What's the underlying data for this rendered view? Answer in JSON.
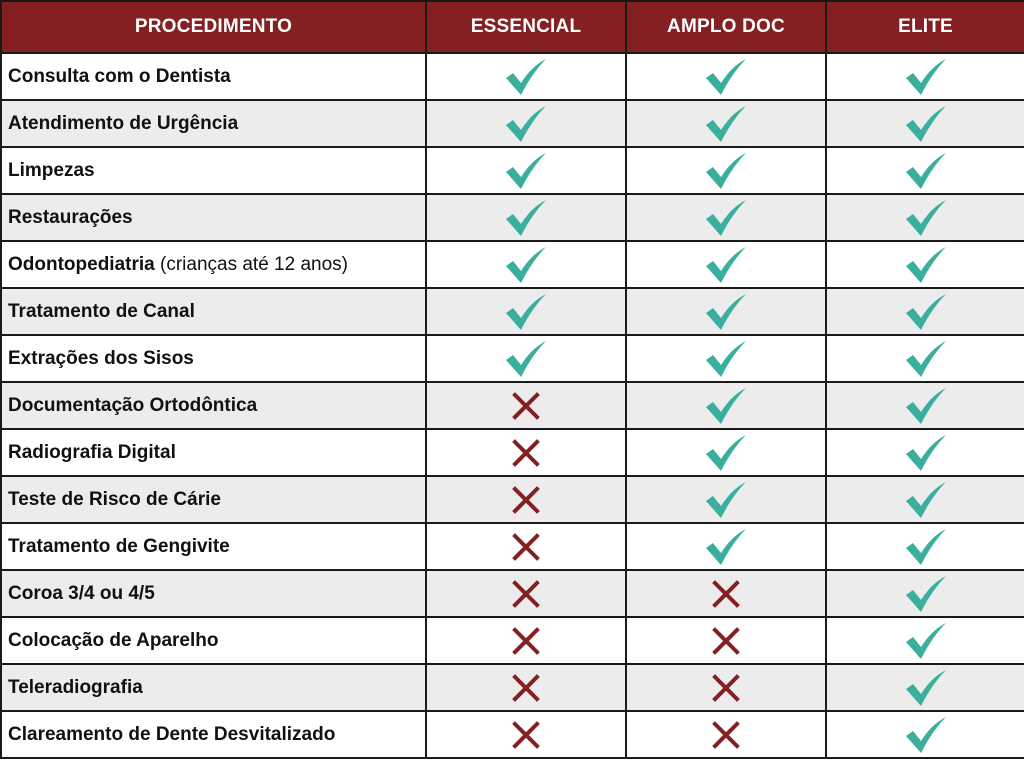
{
  "colors": {
    "header_bg": "#841f22",
    "header_text": "#ffffff",
    "check": "#3aaf9d",
    "cross": "#841f22",
    "row_alt": "#ececec",
    "border": "#1a1a1a"
  },
  "table": {
    "headers": [
      "PROCEDIMENTO",
      "ESSENCIAL",
      "AMPLO DOC",
      "ELITE"
    ],
    "rows": [
      {
        "name": "Consulta com o Dentista",
        "note": "",
        "essencial": "check",
        "amplo_doc": "check",
        "elite": "check"
      },
      {
        "name": "Atendimento de Urgência",
        "note": "",
        "essencial": "check",
        "amplo_doc": "check",
        "elite": "check"
      },
      {
        "name": "Limpezas",
        "note": "",
        "essencial": "check",
        "amplo_doc": "check",
        "elite": "check"
      },
      {
        "name": "Restaurações",
        "note": "",
        "essencial": "check",
        "amplo_doc": "check",
        "elite": "check"
      },
      {
        "name": "Odontopediatria",
        "note": " (crianças até 12 anos)",
        "essencial": "check",
        "amplo_doc": "check",
        "elite": "check"
      },
      {
        "name": "Tratamento de Canal",
        "note": "",
        "essencial": "check",
        "amplo_doc": "check",
        "elite": "check"
      },
      {
        "name": "Extrações dos Sisos",
        "note": "",
        "essencial": "check",
        "amplo_doc": "check",
        "elite": "check"
      },
      {
        "name": "Documentação Ortodôntica",
        "note": "",
        "essencial": "cross",
        "amplo_doc": "check",
        "elite": "check"
      },
      {
        "name": "Radiografia Digital",
        "note": "",
        "essencial": "cross",
        "amplo_doc": "check",
        "elite": "check"
      },
      {
        "name": "Teste de Risco de Cárie",
        "note": "",
        "essencial": "cross",
        "amplo_doc": "check",
        "elite": "check"
      },
      {
        "name": "Tratamento de Gengivite",
        "note": "",
        "essencial": "cross",
        "amplo_doc": "check",
        "elite": "check"
      },
      {
        "name": "Coroa 3/4 ou 4/5",
        "note": "",
        "essencial": "cross",
        "amplo_doc": "cross",
        "elite": "check"
      },
      {
        "name": "Colocação de Aparelho",
        "note": "",
        "essencial": "cross",
        "amplo_doc": "cross",
        "elite": "check"
      },
      {
        "name": "Teleradiografia",
        "note": "",
        "essencial": "cross",
        "amplo_doc": "cross",
        "elite": "check"
      },
      {
        "name": "Clareamento de Dente Desvitalizado",
        "note": "",
        "essencial": "cross",
        "amplo_doc": "cross",
        "elite": "check"
      }
    ]
  }
}
